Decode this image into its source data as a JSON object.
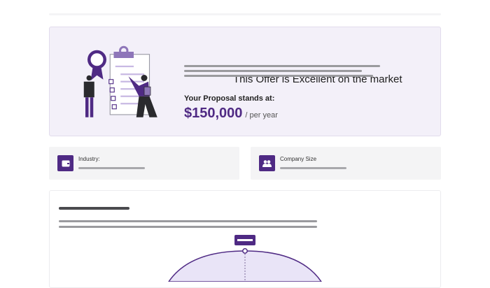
{
  "offer": {
    "title": "This Offer is Excellent on the market",
    "proposal_label": "Your Proposal stands at:",
    "amount": "$150,000",
    "period": "/ per year",
    "illustration": "clipboard-checklist-award-people"
  },
  "cards": [
    {
      "label": "Industry:",
      "icon": "wallet-icon"
    },
    {
      "label": "Company Size",
      "icon": "users-icon"
    }
  ],
  "colors": {
    "accent": "#4f2a84",
    "banner_bg": "#f3f0f9",
    "curve_fill": "#e9e4f7"
  }
}
